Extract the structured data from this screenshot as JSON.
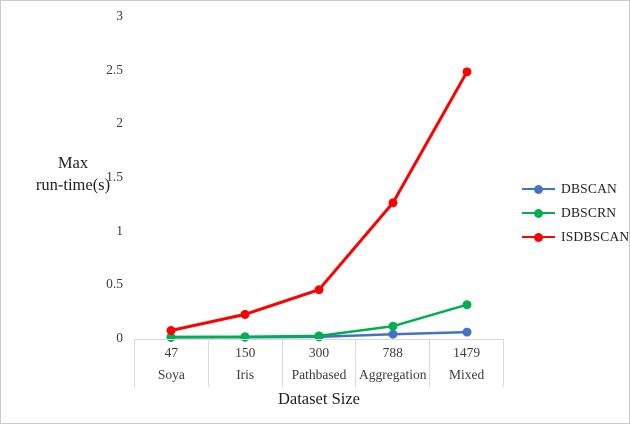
{
  "chart_data": {
    "type": "line",
    "title": "",
    "xlabel": "Dataset Size",
    "ylabel": "Max run-time(s)",
    "ylabel_display": "Max\nrun-time(s)",
    "categories": [
      "47",
      "150",
      "300",
      "788",
      "1479"
    ],
    "category_names": [
      "Soya",
      "Iris",
      "Pathbased",
      "Aggregation",
      "Mixed"
    ],
    "series": [
      {
        "name": "DBSCAN",
        "color": "#4472c4",
        "line_width": 2.5,
        "values": [
          0.005,
          0.007,
          0.01,
          0.035,
          0.055
        ]
      },
      {
        "name": "DBSCRN",
        "color": "#00b050",
        "line_width": 2.5,
        "values": [
          0.01,
          0.012,
          0.02,
          0.11,
          0.31
        ]
      },
      {
        "name": "ISDBSCAN",
        "color": "#ff0000",
        "line_width": 3,
        "values": [
          0.07,
          0.22,
          0.45,
          1.26,
          2.48
        ]
      }
    ],
    "ylim": [
      0,
      3
    ],
    "yticks": [
      "3",
      "2.5",
      "2",
      "1.5",
      "1",
      "0.5",
      "0"
    ],
    "grid": false,
    "legend_position": "right",
    "marker": "circle"
  },
  "colors": {
    "background": "#ffffff",
    "frame_border": "#c9c9c9",
    "table_border": "#d9d9d9",
    "tick_text": "#3b3b3b",
    "title_text": "#1f1f1f"
  }
}
